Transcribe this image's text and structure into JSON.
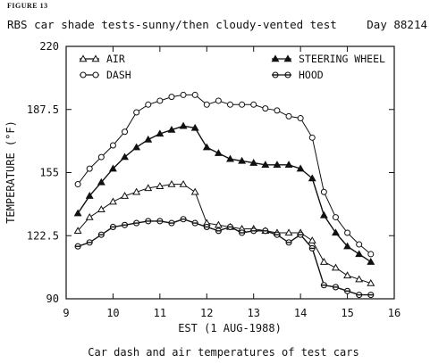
{
  "figure_label": "FIGURE 13",
  "caption": "Car dash and air temperatures of test cars",
  "chart_data": {
    "type": "line",
    "title": "RBS car shade tests-sunny/then cloudy-vented test",
    "subtitle": "Day 88214",
    "xlabel": "EST (1 AUG-1988)",
    "ylabel": "TEMPERATURE (°F)",
    "xlim": [
      9,
      16
    ],
    "ylim": [
      90,
      220
    ],
    "x_ticks": [
      "9",
      "10",
      "11",
      "12",
      "13",
      "14",
      "15",
      "16"
    ],
    "y_ticks": [
      "90",
      "122.5",
      "155",
      "187.5",
      "220"
    ],
    "legend_position": "top",
    "grid": false,
    "series": [
      {
        "name": "AIR",
        "marker": "triangle-open",
        "points": [
          [
            9.25,
            125
          ],
          [
            9.5,
            132
          ],
          [
            9.75,
            136
          ],
          [
            10,
            140
          ],
          [
            10.25,
            143
          ],
          [
            10.5,
            145
          ],
          [
            10.75,
            147
          ],
          [
            11,
            148
          ],
          [
            11.25,
            149
          ],
          [
            11.5,
            149
          ],
          [
            11.75,
            145
          ],
          [
            12,
            129
          ],
          [
            12.25,
            128
          ],
          [
            12.5,
            127
          ],
          [
            12.75,
            126
          ],
          [
            13,
            126
          ],
          [
            13.25,
            125
          ],
          [
            13.5,
            124
          ],
          [
            13.75,
            124
          ],
          [
            14,
            124
          ],
          [
            14.25,
            120
          ],
          [
            14.5,
            109
          ],
          [
            14.75,
            106
          ],
          [
            15,
            102
          ],
          [
            15.25,
            100
          ],
          [
            15.5,
            98
          ]
        ]
      },
      {
        "name": "DASH",
        "marker": "circle-open",
        "points": [
          [
            9.25,
            149
          ],
          [
            9.5,
            157
          ],
          [
            9.75,
            163
          ],
          [
            10,
            169
          ],
          [
            10.25,
            176
          ],
          [
            10.5,
            186
          ],
          [
            10.75,
            190
          ],
          [
            11,
            192
          ],
          [
            11.25,
            194
          ],
          [
            11.5,
            195
          ],
          [
            11.75,
            195
          ],
          [
            12,
            190
          ],
          [
            12.25,
            192
          ],
          [
            12.5,
            190
          ],
          [
            12.75,
            190
          ],
          [
            13,
            190
          ],
          [
            13.25,
            188
          ],
          [
            13.5,
            187
          ],
          [
            13.75,
            184
          ],
          [
            14,
            183
          ],
          [
            14.25,
            173
          ],
          [
            14.5,
            145
          ],
          [
            14.75,
            132
          ],
          [
            15,
            124
          ],
          [
            15.25,
            118
          ],
          [
            15.5,
            113
          ]
        ]
      },
      {
        "name": "STEERING WHEEL",
        "marker": "triangle-filled",
        "points": [
          [
            9.25,
            134
          ],
          [
            9.5,
            143
          ],
          [
            9.75,
            150
          ],
          [
            10,
            157
          ],
          [
            10.25,
            163
          ],
          [
            10.5,
            168
          ],
          [
            10.75,
            172
          ],
          [
            11,
            175
          ],
          [
            11.25,
            177
          ],
          [
            11.5,
            179
          ],
          [
            11.75,
            178
          ],
          [
            12,
            168
          ],
          [
            12.25,
            165
          ],
          [
            12.5,
            162
          ],
          [
            12.75,
            161
          ],
          [
            13,
            160
          ],
          [
            13.25,
            159
          ],
          [
            13.5,
            159
          ],
          [
            13.75,
            159
          ],
          [
            14,
            157
          ],
          [
            14.25,
            152
          ],
          [
            14.5,
            133
          ],
          [
            14.75,
            124
          ],
          [
            15,
            117
          ],
          [
            15.25,
            113
          ],
          [
            15.5,
            109
          ]
        ]
      },
      {
        "name": "HOOD",
        "marker": "circle-half",
        "points": [
          [
            9.25,
            117
          ],
          [
            9.5,
            119
          ],
          [
            9.75,
            123
          ],
          [
            10,
            127
          ],
          [
            10.25,
            128
          ],
          [
            10.5,
            129
          ],
          [
            10.75,
            130
          ],
          [
            11,
            130
          ],
          [
            11.25,
            129
          ],
          [
            11.5,
            131
          ],
          [
            11.75,
            129
          ],
          [
            12,
            127
          ],
          [
            12.25,
            125
          ],
          [
            12.5,
            127
          ],
          [
            12.75,
            124
          ],
          [
            13,
            125
          ],
          [
            13.25,
            125
          ],
          [
            13.5,
            123
          ],
          [
            13.75,
            119
          ],
          [
            14,
            123
          ],
          [
            14.25,
            116
          ],
          [
            14.5,
            97
          ],
          [
            14.75,
            96
          ],
          [
            15,
            94
          ],
          [
            15.25,
            92
          ],
          [
            15.5,
            92
          ]
        ]
      }
    ]
  }
}
